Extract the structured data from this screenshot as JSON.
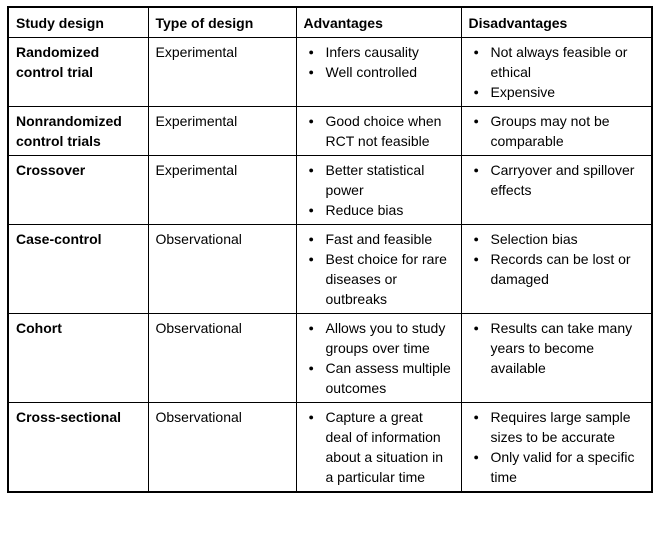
{
  "table": {
    "headers": [
      {
        "label": "Study design"
      },
      {
        "label": "Type of design"
      },
      {
        "label": "Advantages"
      },
      {
        "label": "Disadvantages"
      }
    ],
    "rows": [
      {
        "study_design": "Randomized control trial",
        "type_of_design": "Experimental",
        "advantages": [
          "Infers causality",
          "Well controlled"
        ],
        "disadvantages": [
          "Not always feasible or ethical",
          "Expensive"
        ]
      },
      {
        "study_design": "Nonrandomized control trials",
        "type_of_design": "Experimental",
        "advantages": [
          "Good choice when RCT not feasible"
        ],
        "disadvantages": [
          "Groups may not be comparable"
        ]
      },
      {
        "study_design": "Crossover",
        "type_of_design": "Experimental",
        "advantages": [
          "Better statistical power",
          "Reduce bias"
        ],
        "disadvantages": [
          "Carryover and spillover effects"
        ]
      },
      {
        "study_design": "Case-control",
        "type_of_design": "Observational",
        "advantages": [
          "Fast and feasible",
          "Best choice for rare diseases or outbreaks"
        ],
        "disadvantages": [
          "Selection bias",
          "Records can be lost or damaged"
        ]
      },
      {
        "study_design": "Cohort",
        "type_of_design": "Observational",
        "advantages": [
          "Allows you to study groups over time",
          "Can assess multiple outcomes"
        ],
        "disadvantages": [
          "Results can take many years to become available"
        ]
      },
      {
        "study_design": "Cross-sectional",
        "type_of_design": "Observational",
        "advantages": [
          "Capture a great deal of information about a situation in a particular time"
        ],
        "disadvantages": [
          "Requires large sample sizes to be accurate",
          "Only valid for a specific time"
        ]
      }
    ]
  }
}
